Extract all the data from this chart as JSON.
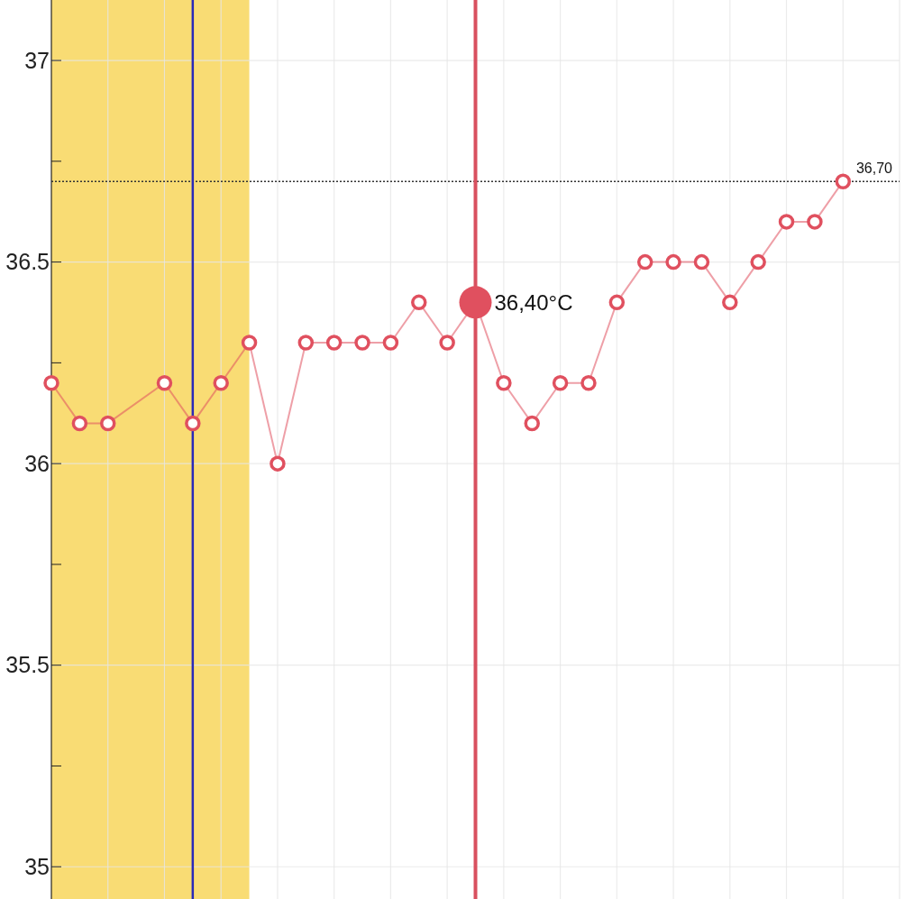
{
  "chart_data": {
    "type": "line",
    "categories": [
      null,
      null,
      null,
      null,
      null,
      null,
      null,
      null,
      null,
      null,
      null,
      null,
      null,
      null,
      null,
      null,
      null,
      null,
      null,
      null,
      null,
      null,
      null,
      null,
      null,
      null,
      null,
      null,
      null,
      null,
      null
    ],
    "series": [
      {
        "color": "#e0505f",
        "values": [
          36.2,
          36.1,
          36.1,
          null,
          36.2,
          36.1,
          36.2,
          36.3,
          36.0,
          36.3,
          36.3,
          36.3,
          36.3,
          36.4,
          36.3,
          36.4,
          36.2,
          36.1,
          36.2,
          36.2,
          36.4,
          36.5,
          36.5,
          36.5,
          36.4,
          36.5,
          36.6,
          36.6,
          36.7,
          null,
          null
        ]
      }
    ],
    "ylim": [
      34.92,
      37.15
    ],
    "yticks": [
      35,
      {
        "value": 35.25,
        "label": null
      },
      35.5,
      {
        "value": 35.75,
        "label": null
      },
      36,
      {
        "value": 36.25,
        "label": null
      },
      36.5,
      {
        "value": 36.75,
        "label": null
      },
      37
    ],
    "tick_labels": "y",
    "grid": true,
    "marker": "circle",
    "line_style": "solid",
    "ref_lines": [
      {
        "axis": "y",
        "value": 36.7,
        "label": "36,70",
        "color": "#333333",
        "line_style": "dotted"
      }
    ],
    "annotations": [
      "36,40°C"
    ]
  }
}
